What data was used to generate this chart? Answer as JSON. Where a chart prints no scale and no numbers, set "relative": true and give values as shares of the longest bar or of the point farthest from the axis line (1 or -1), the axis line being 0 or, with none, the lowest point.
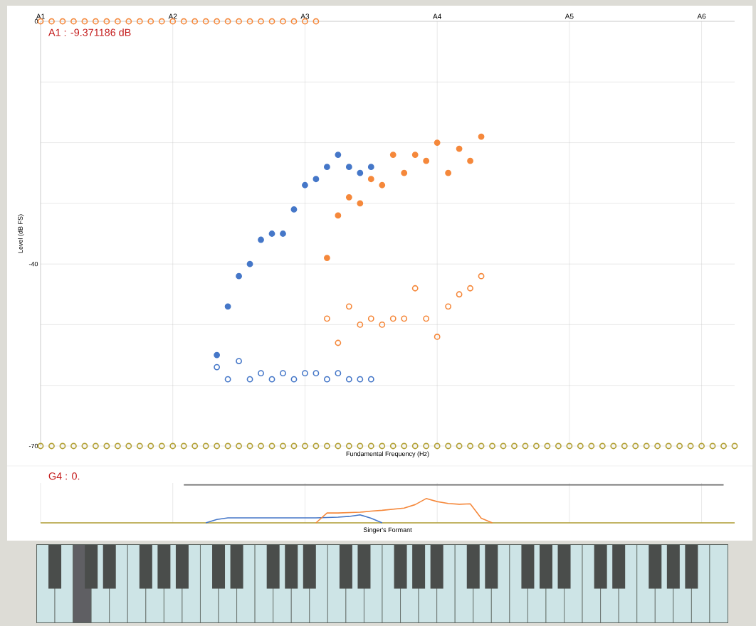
{
  "chart_data": [
    {
      "type": "scatter",
      "xlabel": "Fundamental Frequency (Hz)",
      "ylabel": "Level (dB FS)",
      "annotations": [
        "A1 : -9.371186 dB"
      ],
      "categories": [
        "A1",
        null,
        null,
        null,
        null,
        null,
        null,
        null,
        null,
        null,
        null,
        null,
        "A2",
        null,
        null,
        null,
        null,
        null,
        null,
        null,
        null,
        null,
        null,
        null,
        "A3",
        null,
        null,
        null,
        null,
        null,
        null,
        null,
        null,
        null,
        null,
        null,
        "A4",
        null,
        null,
        null,
        null,
        null,
        null,
        null,
        null,
        null,
        null,
        null,
        "A5",
        null,
        null,
        null,
        null,
        null,
        null,
        null,
        null,
        null,
        null,
        null,
        "A6",
        null,
        null,
        null
      ],
      "ylim": [
        -70,
        0
      ],
      "yticks": [
        -70,
        {
          "value": -60,
          "label": null
        },
        {
          "value": -50,
          "label": null
        },
        -40,
        {
          "value": -30,
          "label": null
        },
        {
          "value": -20,
          "label": null
        },
        {
          "value": -10,
          "label": null
        },
        0
      ],
      "grid": true,
      "marker": "circle",
      "series": [
        {
          "color": "#4577c8",
          "values": [
            null,
            null,
            null,
            null,
            null,
            null,
            null,
            null,
            null,
            null,
            null,
            null,
            null,
            null,
            null,
            null,
            -55,
            -47,
            -42,
            -40,
            -36,
            -35,
            -35,
            -31,
            -27,
            -26,
            -24,
            -22,
            -24,
            -25,
            -24,
            null,
            null,
            null,
            null,
            null,
            null,
            null,
            null,
            null,
            null,
            null,
            null,
            null,
            null,
            null,
            null,
            null,
            null,
            null,
            null,
            null,
            null,
            null,
            null,
            null,
            null,
            null,
            null,
            null,
            null,
            null,
            null,
            null
          ]
        },
        {
          "color": "#4577c8",
          "marker": "circle-open",
          "values": [
            null,
            null,
            null,
            null,
            null,
            null,
            null,
            null,
            null,
            null,
            null,
            null,
            null,
            null,
            null,
            null,
            -57,
            -59,
            -56,
            -59,
            -58,
            -59,
            -58,
            -59,
            -58,
            -58,
            -59,
            -58,
            -59,
            -59,
            -59,
            null,
            null,
            null,
            null,
            null,
            null,
            null,
            null,
            null,
            null,
            null,
            null,
            null,
            null,
            null,
            null,
            null,
            null,
            null,
            null,
            null,
            null,
            null,
            null,
            null,
            null,
            null,
            null,
            null,
            null,
            null,
            null,
            null
          ]
        },
        {
          "color": "#f5883b",
          "values": [
            null,
            null,
            null,
            null,
            null,
            null,
            null,
            null,
            null,
            null,
            null,
            null,
            null,
            null,
            null,
            null,
            null,
            null,
            null,
            null,
            null,
            null,
            null,
            null,
            null,
            null,
            -39,
            -32,
            -29,
            -30,
            -26,
            -27,
            -22,
            -25,
            -22,
            -23,
            -20,
            -25,
            -21,
            -23,
            -19,
            null,
            null,
            null,
            null,
            null,
            null,
            null,
            null,
            null,
            null,
            null,
            null,
            null,
            null,
            null,
            null,
            null,
            null,
            null,
            null,
            null,
            null,
            null
          ]
        },
        {
          "color": "#f5883b",
          "marker": "circle-open",
          "values": [
            null,
            null,
            null,
            null,
            null,
            null,
            null,
            null,
            null,
            null,
            null,
            null,
            null,
            null,
            null,
            null,
            null,
            null,
            null,
            null,
            null,
            null,
            null,
            null,
            null,
            null,
            -49,
            -53,
            -47,
            -50,
            -49,
            -50,
            -49,
            -49,
            -44,
            -49,
            -52,
            -47,
            -45,
            -44,
            -42,
            null,
            null,
            null,
            null,
            null,
            null,
            null,
            null,
            null,
            null,
            null,
            null,
            null,
            null,
            null,
            null,
            null,
            null,
            null,
            null,
            null,
            null,
            null
          ]
        },
        {
          "color": "#f5883b",
          "marker": "circle-open",
          "values": [
            0,
            0,
            0,
            0,
            0,
            0,
            0,
            0,
            0,
            0,
            0,
            0,
            0,
            0,
            0,
            0,
            0,
            0,
            0,
            0,
            0,
            0,
            0,
            0,
            0,
            0,
            null,
            null,
            null,
            null,
            null,
            null,
            null,
            null,
            null,
            null,
            null,
            null,
            null,
            null,
            null,
            null,
            null,
            null,
            null,
            null,
            null,
            null,
            null,
            null,
            null,
            null,
            null,
            null,
            null,
            null,
            null,
            null,
            null,
            null,
            null,
            null,
            null,
            null
          ]
        },
        {
          "color": "#b3a137",
          "marker": "circle-open",
          "values": [
            -70,
            -70,
            -70,
            -70,
            -70,
            -70,
            -70,
            -70,
            -70,
            -70,
            -70,
            -70,
            -70,
            -70,
            -70,
            -70,
            -70,
            -70,
            -70,
            -70,
            -70,
            -70,
            -70,
            -70,
            -70,
            -70,
            -70,
            -70,
            -70,
            -70,
            -70,
            -70,
            -70,
            -70,
            -70,
            -70,
            -70,
            -70,
            -70,
            -70,
            -70,
            -70,
            -70,
            -70,
            -70,
            -70,
            -70,
            -70,
            -70,
            -70,
            -70,
            -70,
            -70,
            -70,
            -70,
            -70,
            -70,
            -70,
            -70,
            -70,
            -70,
            -70,
            -70,
            -70
          ]
        }
      ]
    },
    {
      "type": "line",
      "xlabel": "Singer's Formant",
      "annotations": [
        "G4 : 0."
      ],
      "relative": true,
      "categories": [
        null,
        null,
        null,
        null,
        null,
        null,
        null,
        null,
        null,
        null,
        null,
        null,
        null,
        null,
        null,
        null,
        null,
        null,
        null,
        null,
        null,
        null,
        null,
        null,
        null,
        null,
        null,
        null,
        null,
        null,
        null,
        null,
        null,
        null,
        null,
        null,
        null,
        null,
        null,
        null,
        null,
        null,
        null,
        null,
        null,
        null,
        null,
        null,
        null,
        null,
        null,
        null,
        null,
        null,
        null,
        null,
        null,
        null,
        null,
        null,
        null,
        null,
        null,
        null
      ],
      "grid": "x",
      "line_style": "solid",
      "series": [
        {
          "color": "#b3a137",
          "values": [
            0,
            0,
            0,
            0,
            0,
            0,
            0,
            0,
            0,
            0,
            0,
            0,
            0,
            0,
            0,
            0,
            0,
            0,
            0,
            0,
            0,
            0,
            0,
            0,
            0,
            0,
            0,
            0,
            0,
            0,
            0,
            0,
            0,
            0,
            0,
            0,
            0,
            0,
            0,
            0,
            0,
            0,
            0,
            0,
            0,
            0,
            0,
            0,
            0,
            0,
            0,
            0,
            0,
            0,
            0,
            0,
            0,
            0,
            0,
            0,
            0,
            0,
            0,
            0
          ]
        },
        {
          "color": "#6b6b6b",
          "values": [
            null,
            null,
            null,
            null,
            null,
            null,
            null,
            null,
            null,
            null,
            null,
            null,
            null,
            1,
            1,
            1,
            1,
            1,
            1,
            1,
            1,
            1,
            1,
            1,
            1,
            1,
            1,
            1,
            1,
            1,
            1,
            1,
            1,
            1,
            1,
            1,
            1,
            1,
            1,
            1,
            1,
            1,
            1,
            1,
            1,
            1,
            1,
            1,
            1,
            1,
            1,
            1,
            1,
            1,
            1,
            1,
            1,
            1,
            1,
            1,
            1,
            1,
            1,
            null
          ]
        },
        {
          "color": "#4577c8",
          "values": [
            null,
            null,
            null,
            null,
            null,
            null,
            null,
            null,
            null,
            null,
            null,
            null,
            null,
            null,
            null,
            0,
            0.09,
            0.13,
            0.13,
            0.13,
            0.13,
            0.13,
            0.13,
            0.13,
            0.13,
            0.13,
            0.14,
            0.15,
            0.17,
            0.21,
            0.12,
            0,
            null,
            null,
            null,
            null,
            null,
            null,
            null,
            null,
            null,
            null,
            null,
            null,
            null,
            null,
            null,
            null,
            null,
            null,
            null,
            null,
            null,
            null,
            null,
            null,
            null,
            null,
            null,
            null,
            null,
            null,
            null,
            null
          ]
        },
        {
          "color": "#f5883b",
          "values": [
            null,
            null,
            null,
            null,
            null,
            null,
            null,
            null,
            null,
            null,
            null,
            null,
            null,
            null,
            null,
            null,
            null,
            null,
            null,
            null,
            null,
            null,
            null,
            null,
            null,
            0,
            0.26,
            0.26,
            0.27,
            0.28,
            0.31,
            0.33,
            0.36,
            0.39,
            0.48,
            0.64,
            0.56,
            0.51,
            0.49,
            0.5,
            0.12,
            0,
            null,
            null,
            null,
            null,
            null,
            null,
            null,
            null,
            null,
            null,
            null,
            null,
            null,
            null,
            null,
            null,
            null,
            null,
            null,
            null,
            null,
            null
          ]
        }
      ]
    }
  ]
}
